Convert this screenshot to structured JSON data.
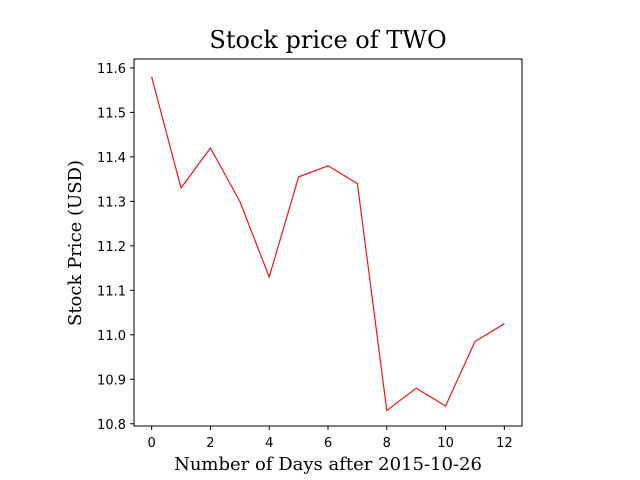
{
  "chart_data": {
    "type": "line",
    "title": "Stock price of TWO",
    "xlabel": "Number of Days after 2015-10-26",
    "ylabel": "Stock Price (USD)",
    "x": [
      0,
      1,
      2,
      3,
      4,
      5,
      6,
      7,
      8,
      9,
      10,
      11,
      12
    ],
    "series": [
      {
        "values": [
          11.58,
          11.33,
          11.42,
          11.3,
          11.13,
          11.355,
          11.38,
          11.34,
          10.83,
          10.88,
          10.84,
          10.985,
          11.025
        ],
        "color": "#e31a1c"
      }
    ],
    "xlim": [
      -0.6,
      12.6
    ],
    "ylim": [
      10.795,
      11.62
    ],
    "xticks": [
      0,
      2,
      4,
      6,
      8,
      10,
      12
    ],
    "yticks": [
      10.8,
      10.9,
      11.0,
      11.1,
      11.2,
      11.3,
      11.4,
      11.5,
      11.6
    ],
    "xtick_labels": [
      "0",
      "2",
      "4",
      "6",
      "8",
      "10",
      "12"
    ],
    "ytick_labels": [
      "10.8",
      "10.9",
      "11.0",
      "11.1",
      "11.2",
      "11.3",
      "11.4",
      "11.5",
      "11.6"
    ],
    "grid": false,
    "legend": false
  }
}
